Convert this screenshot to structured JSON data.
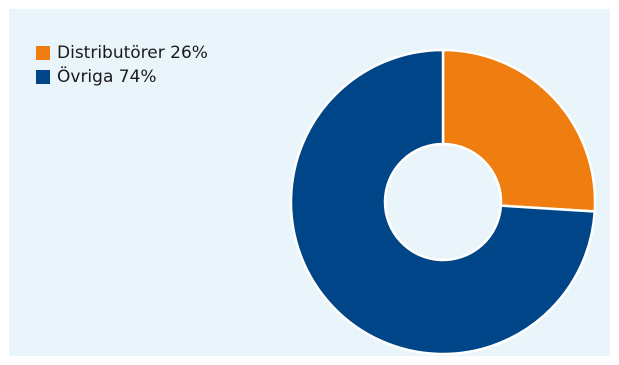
{
  "chart_data": {
    "type": "pie",
    "style": "donut",
    "title": "",
    "legend_position": "top-left",
    "slices": [
      {
        "label": "Distributörer 26%",
        "category": "Distributörer",
        "value": 26,
        "color": "#ef7d10"
      },
      {
        "label": "Övriga 74%",
        "category": "Övriga",
        "value": 74,
        "color": "#004588"
      }
    ]
  }
}
